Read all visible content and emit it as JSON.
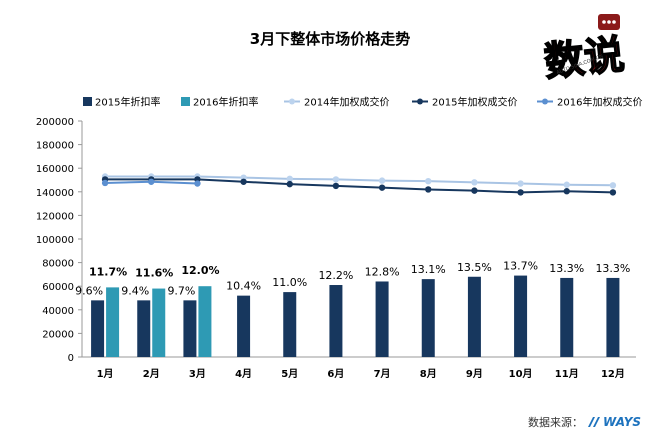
{
  "chart_data": {
    "type": "bar",
    "title": "3月下整体市场价格走势",
    "categories": [
      "1月",
      "2月",
      "3月",
      "4月",
      "5月",
      "6月",
      "7月",
      "8月",
      "9月",
      "10月",
      "11月",
      "12月"
    ],
    "ylim": [
      0,
      200000
    ],
    "yticks": [
      0,
      20000,
      40000,
      60000,
      80000,
      100000,
      120000,
      140000,
      160000,
      180000,
      200000
    ],
    "ytick_labels": [
      "0",
      "20000",
      "40000",
      "60000",
      "80000",
      "100000",
      "120000",
      "140000",
      "160000",
      "180000",
      "200000"
    ],
    "bar_series": [
      {
        "name": "2015年折扣率",
        "color": "#17375e",
        "values": [
          48000,
          48000,
          48000,
          52000,
          55000,
          61000,
          64000,
          66000,
          68000,
          69000,
          67000,
          67000
        ],
        "labels": [
          "9.6%",
          "9.4%",
          "9.7%",
          "10.4%",
          "11.0%",
          "12.2%",
          "12.8%",
          "13.1%",
          "13.5%",
          "13.7%",
          "13.3%",
          "13.3%"
        ]
      },
      {
        "name": "2016年折扣率",
        "color": "#2e9ab4",
        "values": [
          59000,
          58000,
          60000,
          null,
          null,
          null,
          null,
          null,
          null,
          null,
          null,
          null
        ],
        "labels": [
          "11.7%",
          "11.6%",
          "12.0%"
        ]
      }
    ],
    "line_series": [
      {
        "name": "2014年加权成交价",
        "color": "#a9c4e4",
        "marker": "#bcd3ee",
        "values": [
          153000,
          153000,
          153000,
          152000,
          151000,
          150500,
          149500,
          149000,
          148000,
          147000,
          146000,
          145500
        ]
      },
      {
        "name": "2015年加权成交价",
        "color": "#17375e",
        "marker": "#17375e",
        "values": [
          150500,
          150500,
          150500,
          148500,
          146500,
          145000,
          143500,
          142000,
          141000,
          139500,
          140500,
          139500
        ]
      },
      {
        "name": "2016年加权成交价",
        "color": "#5b8fd0",
        "marker": "#5b8fd0",
        "values": [
          147500,
          148500,
          147000,
          null,
          null,
          null,
          null,
          null,
          null,
          null,
          null,
          null
        ]
      }
    ],
    "legend_position": "top",
    "grid": false
  },
  "source": {
    "label": "数据来源：",
    "brand": "WAYS"
  },
  "logo": {
    "text": "数说",
    "subtext": "AUTO.SINA.COM.CN"
  }
}
